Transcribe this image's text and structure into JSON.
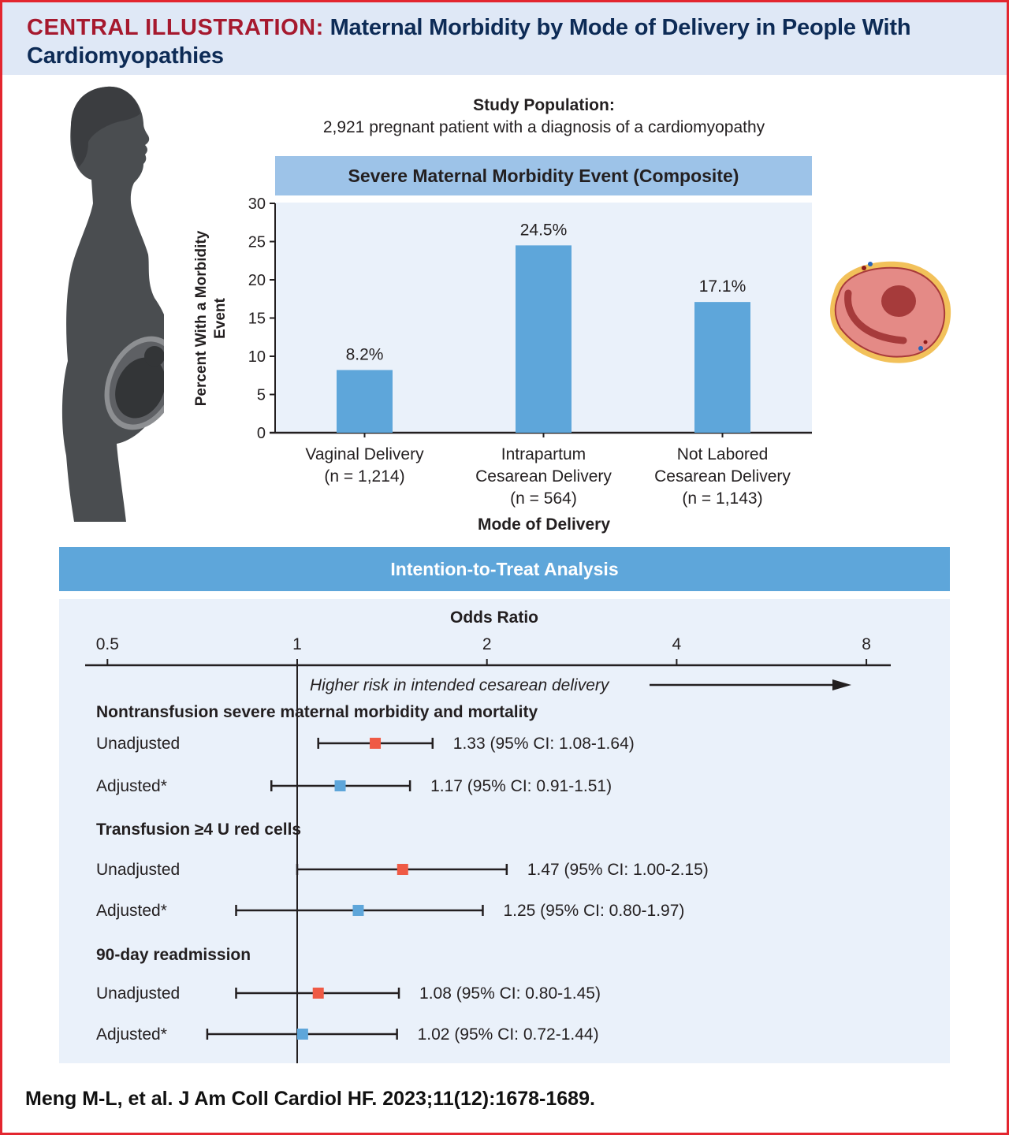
{
  "header": {
    "prefix": "CENTRAL ILLUSTRATION:",
    "title": "Maternal Morbidity by Mode of Delivery in People With Cardiomyopathies"
  },
  "study": {
    "title": "Study Population:",
    "description": "2,921 pregnant patient with a diagnosis of a cardiomyopathy"
  },
  "illustrations": {
    "left": "pregnant-woman-silhouette",
    "right": "heart-cross-section"
  },
  "colors": {
    "frame": "#e3262f",
    "header_bg": "#dfe8f6",
    "title_prefix": "#a6192e",
    "title": "#0d2b56",
    "bar": "#5ea6da",
    "chart_banner": "#9dc3e8",
    "panel_bg": "#eaf1fa",
    "unadjusted": "#ef5a45",
    "adjusted": "#5ea6da"
  },
  "chart_data": [
    {
      "type": "bar",
      "title": "Severe Maternal Morbidity Event (Composite)",
      "xlabel": "Mode of Delivery",
      "ylabel": "Percent With a Morbidity Event",
      "ylim": [
        0,
        30
      ],
      "yticks": [
        0,
        5,
        10,
        15,
        20,
        25,
        30
      ],
      "grid": false,
      "categories": [
        {
          "lines": [
            "Vaginal Delivery",
            "(n = 1,214)"
          ]
        },
        {
          "lines": [
            "Intrapartum",
            "Cesarean Delivery",
            "(n = 564)"
          ]
        },
        {
          "lines": [
            "Not Labored",
            "Cesarean Delivery",
            "(n = 1,143)"
          ]
        }
      ],
      "values": [
        8.2,
        24.5,
        17.1
      ],
      "value_labels": [
        "8.2%",
        "24.5%",
        "17.1%"
      ]
    },
    {
      "type": "forest",
      "banner": "Intention-to-Treat Analysis",
      "xlabel": "Odds Ratio",
      "xscale": "log2",
      "xlim": [
        0.5,
        8
      ],
      "xticks": [
        0.5,
        1,
        2,
        4,
        8
      ],
      "xtick_labels": [
        "0.5",
        "1",
        "2",
        "4",
        "8"
      ],
      "reference": 1,
      "annotation": "Higher risk in intended cesarean delivery",
      "groups": [
        {
          "title": "Nontransfusion severe maternal morbidity and mortality",
          "rows": [
            {
              "label": "Unadjusted",
              "kind": "unadjusted",
              "or": 1.33,
              "lo": 1.08,
              "hi": 1.64,
              "text": "1.33 (95% CI: 1.08-1.64)"
            },
            {
              "label": "Adjusted*",
              "kind": "adjusted",
              "or": 1.17,
              "lo": 0.91,
              "hi": 1.51,
              "text": "1.17 (95% CI: 0.91-1.51)"
            }
          ]
        },
        {
          "title": "Transfusion ≥4 U red cells",
          "rows": [
            {
              "label": "Unadjusted",
              "kind": "unadjusted",
              "or": 1.47,
              "lo": 1.0,
              "hi": 2.15,
              "text": "1.47 (95% CI: 1.00-2.15)"
            },
            {
              "label": "Adjusted*",
              "kind": "adjusted",
              "or": 1.25,
              "lo": 0.8,
              "hi": 1.97,
              "text": "1.25 (95% CI: 0.80-1.97)"
            }
          ]
        },
        {
          "title": "90-day readmission",
          "rows": [
            {
              "label": "Unadjusted",
              "kind": "unadjusted",
              "or": 1.08,
              "lo": 0.8,
              "hi": 1.45,
              "text": "1.08 (95% CI: 0.80-1.45)"
            },
            {
              "label": "Adjusted*",
              "kind": "adjusted",
              "or": 1.02,
              "lo": 0.72,
              "hi": 1.44,
              "text": "1.02 (95% CI: 0.72-1.44)"
            }
          ]
        }
      ]
    }
  ],
  "citation": "Meng M-L, et al. J Am Coll Cardiol HF. 2023;11(12):1678-1689."
}
